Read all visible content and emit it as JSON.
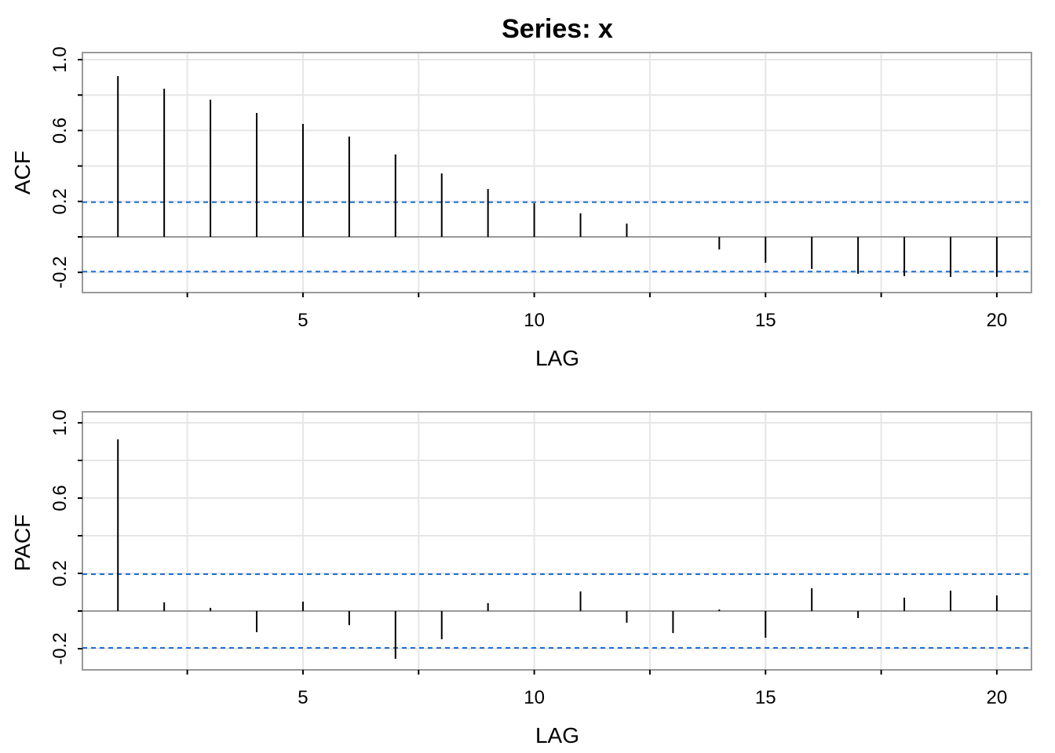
{
  "title": "Series:  x",
  "chart_data": [
    {
      "type": "bar",
      "title": "Series:  x",
      "xlabel": "LAG",
      "ylabel": "ACF",
      "x": [
        1,
        2,
        3,
        4,
        5,
        6,
        7,
        8,
        9,
        10,
        11,
        12,
        13,
        14,
        15,
        16,
        17,
        18,
        19,
        20
      ],
      "values": [
        0.907,
        0.836,
        0.774,
        0.699,
        0.637,
        0.566,
        0.465,
        0.358,
        0.27,
        0.19,
        0.133,
        0.075,
        0.0,
        -0.071,
        -0.146,
        -0.181,
        -0.208,
        -0.221,
        -0.226,
        -0.226
      ],
      "confidence_bounds": [
        -0.196,
        0.196
      ],
      "xlim": [
        0.4,
        20.8
      ],
      "ylim": [
        -0.3,
        1.05
      ],
      "xticks": [
        5,
        10,
        15,
        20
      ],
      "yticks": [
        -0.2,
        0.2,
        0.6,
        1.0
      ],
      "grid": true,
      "colors": {
        "bars": "#000000",
        "bounds": "#1f6fd0",
        "grid": "#e6e6e6",
        "frame": "#999999"
      }
    },
    {
      "type": "bar",
      "xlabel": "LAG",
      "ylabel": "PACF",
      "x": [
        1,
        2,
        3,
        4,
        5,
        6,
        7,
        8,
        9,
        10,
        11,
        12,
        13,
        14,
        15,
        16,
        17,
        18,
        19,
        20
      ],
      "values": [
        0.912,
        0.046,
        0.017,
        -0.112,
        0.05,
        -0.075,
        -0.254,
        -0.15,
        0.042,
        0.0,
        0.104,
        -0.062,
        -0.117,
        0.008,
        -0.142,
        0.121,
        -0.037,
        0.071,
        0.108,
        0.083
      ],
      "confidence_bounds": [
        -0.196,
        0.196
      ],
      "xlim": [
        0.4,
        20.8
      ],
      "ylim": [
        -0.31,
        1.06
      ],
      "xticks": [
        5,
        10,
        15,
        20
      ],
      "yticks": [
        -0.2,
        0.2,
        0.6,
        1.0
      ],
      "grid": true,
      "colors": {
        "bars": "#000000",
        "bounds": "#1f6fd0",
        "grid": "#e6e6e6",
        "frame": "#999999"
      }
    }
  ]
}
